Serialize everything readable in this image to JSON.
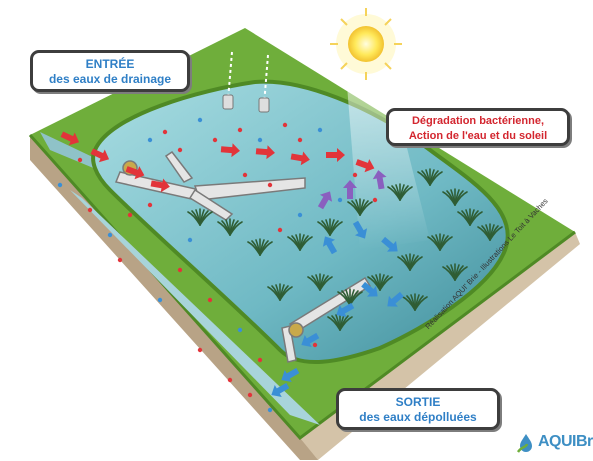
{
  "labels": {
    "entree_line1": "ENTRÉE",
    "entree_line2": "des eaux de drainage",
    "degradation_line1": "Dégradation bactérienne,",
    "degradation_line2": "Action de l'eau et du soleil",
    "sortie_line1": "SORTIE",
    "sortie_line2": "des eaux dépolluées"
  },
  "credit": "Réalisation AQUI' Brie - Illustrations Le Toit à Vaches",
  "logo_text": "AQUIBr",
  "colors": {
    "grass": "#6fae3b",
    "grass_dark": "#4f8a25",
    "water": "#7ec5cf",
    "soil": "#c9b79c",
    "inflow_arrow": "#e2343a",
    "outflow_arrow": "#3a8fd6",
    "mix_arrow": "#8a5fbf",
    "entree_text": "#2f7fc6",
    "degradation_text": "#d3262f"
  }
}
